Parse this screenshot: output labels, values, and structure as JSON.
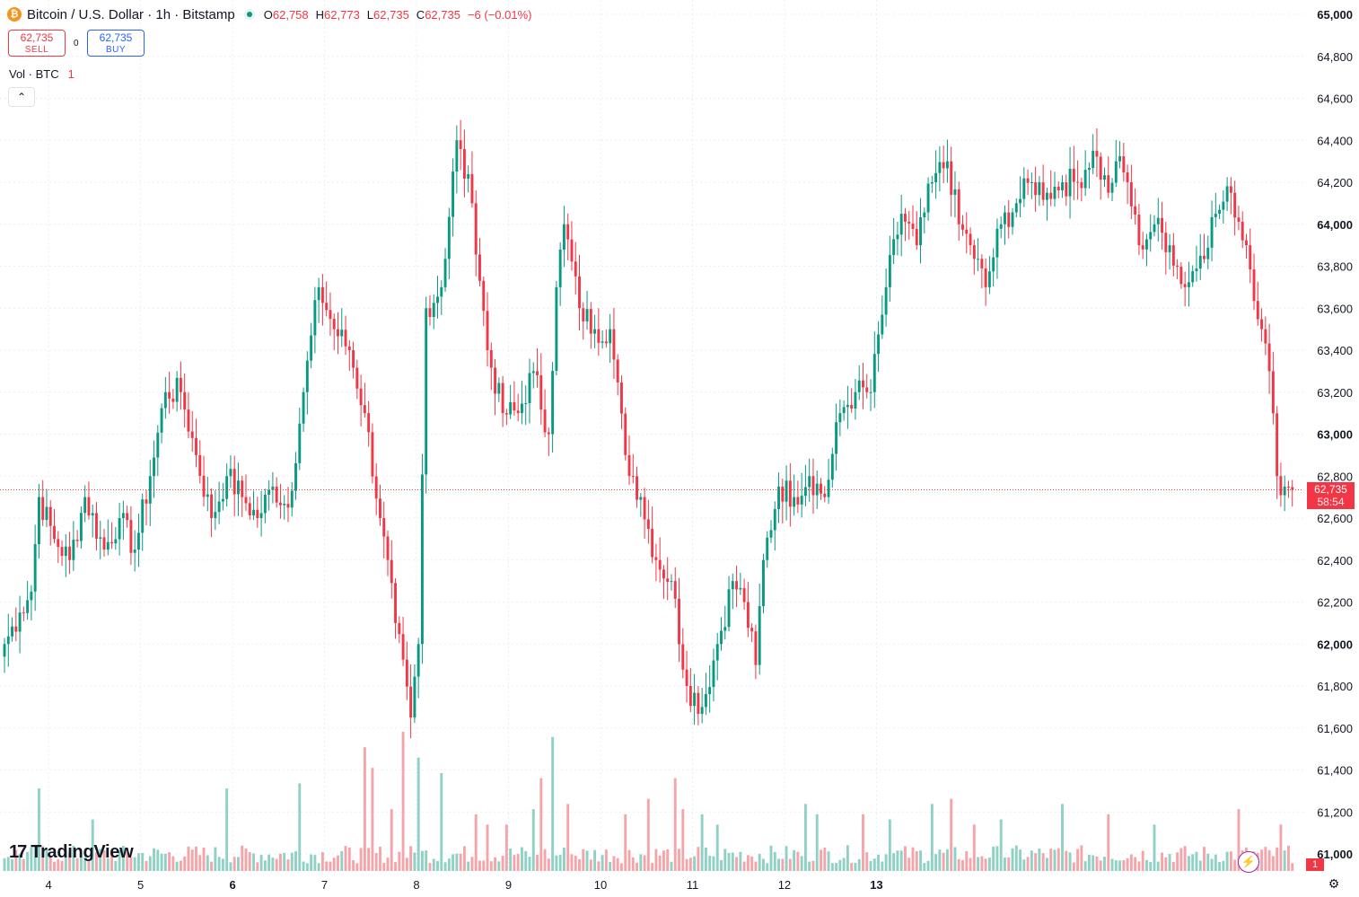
{
  "header": {
    "symbol_icon": "bitcoin-coin-icon",
    "title": "Bitcoin / U.S. Dollar · 1h · Bitstamp",
    "ohlc": {
      "o_label": "O",
      "o_value": "62,758",
      "h_label": "H",
      "h_value": "62,773",
      "l_label": "L",
      "l_value": "62,735",
      "c_label": "C",
      "c_value": "62,735",
      "change": "−6 (−0.01%)"
    }
  },
  "trade": {
    "sell_price": "62,735",
    "sell_label": "SELL",
    "spread": "0",
    "buy_price": "62,735",
    "buy_label": "BUY"
  },
  "volume_legend": {
    "name": "Vol · BTC",
    "value": "1"
  },
  "collapse_icon": "chevron-up-icon",
  "brand": {
    "mark": "17",
    "name": "TradingView"
  },
  "last_price": {
    "price": "62,735",
    "countdown": "58:54"
  },
  "last_volume": "1",
  "colors": {
    "up": "#089981",
    "down": "#f23645",
    "vol_up": "#8fd1c4",
    "vol_down": "#f5a5a9",
    "grid": "#ebeef4",
    "text": "#131722"
  },
  "chart_data": {
    "type": "candlestick",
    "timeframe": "1h",
    "y_axis": {
      "ticks": [
        "65,000",
        "64,800",
        "64,600",
        "64,400",
        "64,200",
        "64,000",
        "63,800",
        "63,600",
        "63,400",
        "63,200",
        "63,000",
        "62,800",
        "62,600",
        "62,400",
        "62,200",
        "62,000",
        "61,800",
        "61,600",
        "61,400",
        "61,200",
        "61,000"
      ],
      "range": [
        61000,
        65000
      ]
    },
    "x_axis": {
      "ticks": [
        "4",
        "5",
        "6",
        "7",
        "8",
        "9",
        "10",
        "11",
        "12",
        "13"
      ]
    },
    "close_anchors": [
      [
        0,
        62000
      ],
      [
        4,
        62150
      ],
      [
        7,
        62250
      ],
      [
        9,
        62700
      ],
      [
        13,
        62500
      ],
      [
        17,
        62400
      ],
      [
        21,
        62700
      ],
      [
        26,
        62450
      ],
      [
        30,
        62600
      ],
      [
        34,
        62450
      ],
      [
        38,
        62800
      ],
      [
        42,
        63200
      ],
      [
        46,
        63200
      ],
      [
        50,
        62900
      ],
      [
        54,
        62600
      ],
      [
        58,
        62800
      ],
      [
        62,
        62700
      ],
      [
        66,
        62600
      ],
      [
        70,
        62750
      ],
      [
        74,
        62650
      ],
      [
        78,
        63200
      ],
      [
        82,
        63700
      ],
      [
        86,
        63500
      ],
      [
        90,
        63400
      ],
      [
        94,
        63100
      ],
      [
        98,
        62600
      ],
      [
        102,
        62100
      ],
      [
        106,
        61650
      ],
      [
        108,
        62000
      ],
      [
        110,
        63600
      ],
      [
        114,
        63700
      ],
      [
        118,
        64400
      ],
      [
        122,
        64100
      ],
      [
        126,
        63400
      ],
      [
        130,
        63100
      ],
      [
        134,
        63100
      ],
      [
        138,
        63300
      ],
      [
        142,
        63000
      ],
      [
        144,
        63700
      ],
      [
        146,
        64000
      ],
      [
        150,
        63600
      ],
      [
        154,
        63500
      ],
      [
        158,
        63500
      ],
      [
        162,
        62900
      ],
      [
        166,
        62700
      ],
      [
        170,
        62400
      ],
      [
        174,
        62300
      ],
      [
        178,
        61800
      ],
      [
        182,
        61700
      ],
      [
        186,
        62000
      ],
      [
        190,
        62300
      ],
      [
        193,
        62200
      ],
      [
        196,
        61900
      ],
      [
        198,
        62400
      ],
      [
        202,
        62750
      ],
      [
        206,
        62700
      ],
      [
        210,
        62800
      ],
      [
        214,
        62700
      ],
      [
        218,
        63100
      ],
      [
        222,
        63200
      ],
      [
        226,
        63200
      ],
      [
        230,
        63700
      ],
      [
        234,
        64050
      ],
      [
        238,
        63900
      ],
      [
        242,
        64200
      ],
      [
        246,
        64300
      ],
      [
        249,
        64000
      ],
      [
        252,
        63900
      ],
      [
        256,
        63700
      ],
      [
        260,
        64000
      ],
      [
        264,
        64100
      ],
      [
        268,
        64200
      ],
      [
        272,
        64150
      ],
      [
        276,
        64200
      ],
      [
        280,
        64200
      ],
      [
        284,
        64350
      ],
      [
        288,
        64150
      ],
      [
        290,
        64300
      ],
      [
        293,
        64200
      ],
      [
        296,
        63900
      ],
      [
        300,
        64000
      ],
      [
        304,
        63900
      ],
      [
        308,
        63700
      ],
      [
        312,
        63850
      ],
      [
        316,
        64050
      ],
      [
        320,
        64150
      ],
      [
        324,
        63900
      ],
      [
        328,
        63500
      ],
      [
        330,
        63300
      ],
      [
        332,
        62800
      ],
      [
        334,
        62750
      ],
      [
        336,
        62735
      ]
    ],
    "volume_peaks": [
      [
        9,
        16
      ],
      [
        23,
        10
      ],
      [
        58,
        16
      ],
      [
        77,
        17
      ],
      [
        94,
        24
      ],
      [
        96,
        20
      ],
      [
        101,
        12
      ],
      [
        104,
        27
      ],
      [
        108,
        22
      ],
      [
        114,
        19
      ],
      [
        123,
        11
      ],
      [
        126,
        9
      ],
      [
        131,
        9
      ],
      [
        138,
        12
      ],
      [
        140,
        18
      ],
      [
        143,
        26
      ],
      [
        147,
        13
      ],
      [
        162,
        11
      ],
      [
        168,
        14
      ],
      [
        175,
        18
      ],
      [
        177,
        12
      ],
      [
        182,
        11
      ],
      [
        186,
        9
      ],
      [
        209,
        13
      ],
      [
        212,
        11
      ],
      [
        224,
        11
      ],
      [
        231,
        10
      ],
      [
        242,
        13
      ],
      [
        247,
        14
      ],
      [
        253,
        9
      ],
      [
        260,
        10
      ],
      [
        276,
        13
      ],
      [
        288,
        11
      ],
      [
        300,
        9
      ],
      [
        322,
        12
      ],
      [
        333,
        9
      ]
    ]
  }
}
